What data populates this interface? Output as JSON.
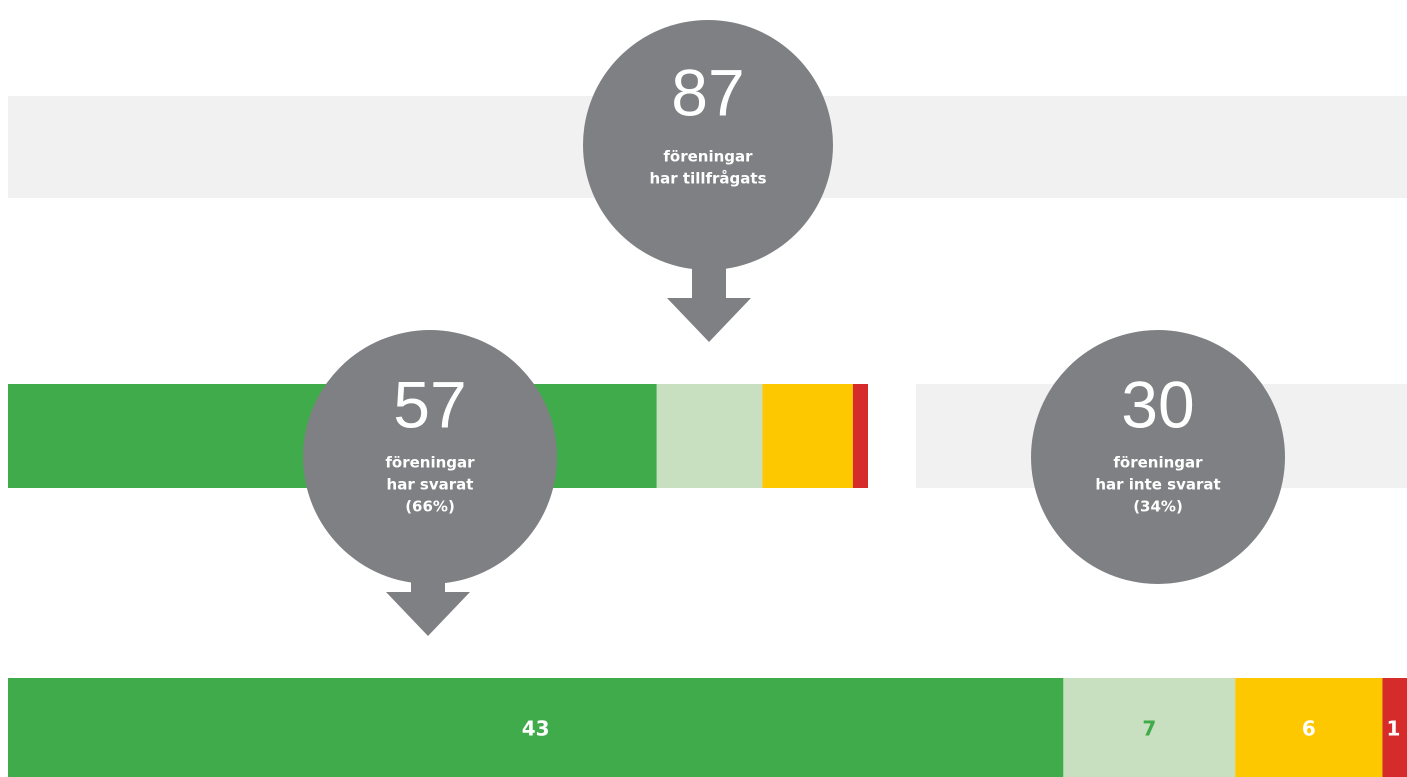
{
  "circles": [
    {
      "value": 87,
      "lines": [
        "föreningar",
        "har tillfrågats"
      ]
    },
    {
      "value": 57,
      "lines": [
        "föreningar",
        "har svarat",
        "(66%)"
      ]
    },
    {
      "value": 30,
      "lines": [
        "föreningar",
        "har inte svarat",
        "(34%)"
      ]
    }
  ],
  "segments": [
    {
      "value": 43,
      "color": "#3fab4a",
      "label_color": "#ffffff"
    },
    {
      "value": 7,
      "color": "#c8dfc0",
      "label_color": "#3fab4a"
    },
    {
      "value": 6,
      "color": "#fdc800",
      "label_color": "#ffffff"
    },
    {
      "value": 1,
      "color": "#d52b2b",
      "label_color": "#ffffff"
    }
  ],
  "background_color": "#f0f1f0",
  "circle_color": "#7f8083"
}
